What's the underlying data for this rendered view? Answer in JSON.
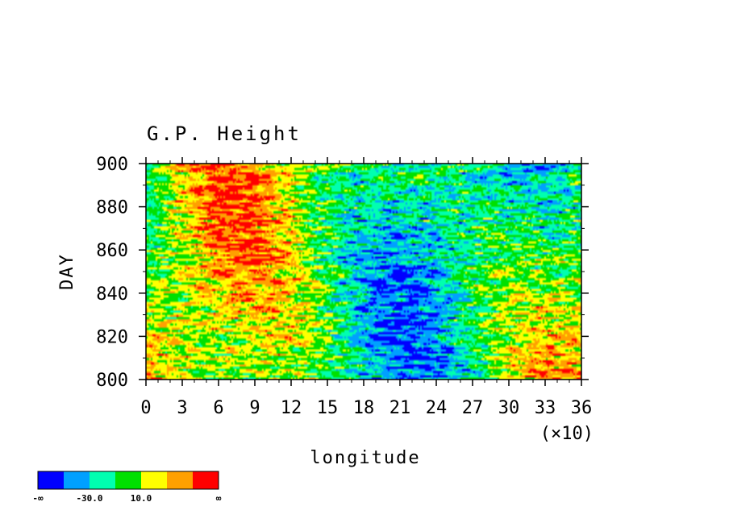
{
  "chart_data": {
    "type": "heatmap",
    "title": "G.P. Height",
    "xlabel": "longitude",
    "ylabel": "DAY",
    "x_multiplier": "(×10)",
    "xlim": [
      0,
      36
    ],
    "ylim": [
      800,
      900
    ],
    "x_ticks": [
      "0",
      "3",
      "6",
      "9",
      "12",
      "15",
      "18",
      "21",
      "24",
      "27",
      "30",
      "33",
      "36"
    ],
    "y_ticks": [
      "800",
      "820",
      "840",
      "860",
      "880",
      "900"
    ],
    "colorbar": {
      "colors": [
        "#0000ff",
        "#00a0ff",
        "#00ffb0",
        "#00e000",
        "#ffff00",
        "#ffa000",
        "#ff0000"
      ],
      "labels": [
        "-∞",
        "-30.0",
        "10.0",
        "∞"
      ]
    }
  }
}
